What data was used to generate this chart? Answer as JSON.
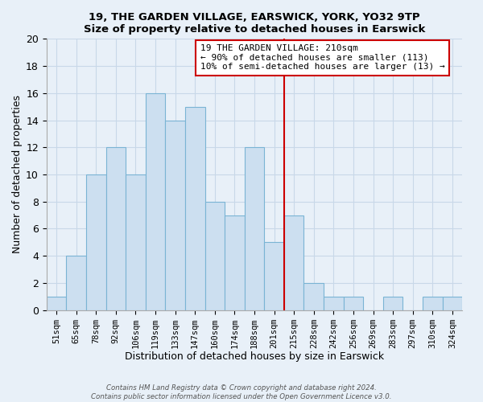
{
  "title": "19, THE GARDEN VILLAGE, EARSWICK, YORK, YO32 9TP",
  "subtitle": "Size of property relative to detached houses in Earswick",
  "xlabel": "Distribution of detached houses by size in Earswick",
  "ylabel": "Number of detached properties",
  "bin_labels": [
    "51sqm",
    "65sqm",
    "78sqm",
    "92sqm",
    "106sqm",
    "119sqm",
    "133sqm",
    "147sqm",
    "160sqm",
    "174sqm",
    "188sqm",
    "201sqm",
    "215sqm",
    "228sqm",
    "242sqm",
    "256sqm",
    "269sqm",
    "283sqm",
    "297sqm",
    "310sqm",
    "324sqm"
  ],
  "bar_heights": [
    1,
    4,
    10,
    12,
    10,
    16,
    14,
    15,
    8,
    7,
    12,
    5,
    7,
    2,
    1,
    1,
    0,
    1,
    0,
    1,
    1
  ],
  "bar_color": "#ccdff0",
  "bar_edge_color": "#7ab4d4",
  "ylim": [
    0,
    20
  ],
  "yticks": [
    0,
    2,
    4,
    6,
    8,
    10,
    12,
    14,
    16,
    18,
    20
  ],
  "vline_x": 11.5,
  "vline_color": "#cc0000",
  "annotation_title": "19 THE GARDEN VILLAGE: 210sqm",
  "annotation_line1": "← 90% of detached houses are smaller (113)",
  "annotation_line2": "10% of semi-detached houses are larger (13) →",
  "annotation_box_color": "#ffffff",
  "annotation_box_edge": "#cc0000",
  "footer1": "Contains HM Land Registry data © Crown copyright and database right 2024.",
  "footer2": "Contains public sector information licensed under the Open Government Licence v3.0.",
  "grid_color": "#c8d8e8",
  "bg_color": "#e8f0f8"
}
